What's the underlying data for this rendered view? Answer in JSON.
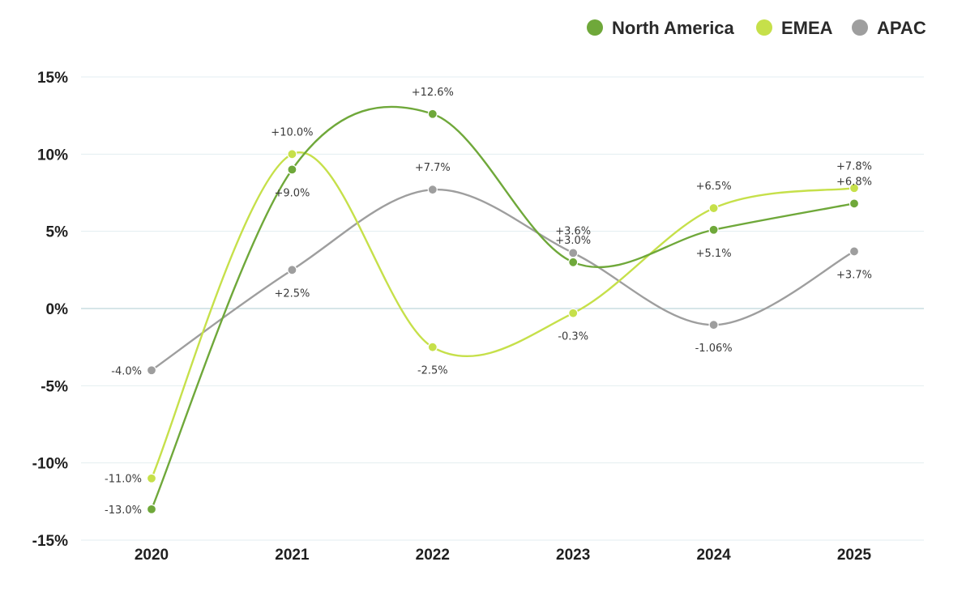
{
  "chart_data": {
    "type": "line",
    "title": "",
    "xlabel": "",
    "ylabel": "",
    "smooth": true,
    "x": [
      "2020",
      "2021",
      "2022",
      "2023",
      "2024",
      "2025"
    ],
    "ylim": [
      -15,
      15
    ],
    "yticks": [
      15,
      10,
      5,
      0,
      -5,
      -10,
      -15
    ],
    "ytick_labels": [
      "15%",
      "10%",
      "5%",
      "0%",
      "-5%",
      "-10%",
      "-15%"
    ],
    "grid": true,
    "legend_position": "top-right",
    "series": [
      {
        "name": "North America",
        "color": "#6fa83a",
        "values": [
          -13.0,
          9.0,
          12.6,
          3.0,
          5.1,
          6.8
        ],
        "labels": [
          "-13.0%",
          "+9.0%",
          "+12.6%",
          "+3.0%",
          "+5.1%",
          "+6.8%"
        ],
        "label_pos": [
          "left",
          "below",
          "above",
          "above",
          "below",
          "above"
        ]
      },
      {
        "name": "EMEA",
        "color": "#c6e04a",
        "values": [
          -11.0,
          10.0,
          -2.5,
          -0.3,
          6.5,
          7.8
        ],
        "labels": [
          "-11.0%",
          "+10.0%",
          "-2.5%",
          "-0.3%",
          "+6.5%",
          "+7.8%"
        ],
        "label_pos": [
          "left",
          "above",
          "below",
          "below",
          "above",
          "above"
        ]
      },
      {
        "name": "APAC",
        "color": "#9e9e9e",
        "values": [
          -4.0,
          2.5,
          7.7,
          3.6,
          -1.06,
          3.7
        ],
        "labels": [
          "-4.0%",
          "+2.5%",
          "+7.7%",
          "+3.6%",
          "-1.06%",
          "+3.7%"
        ],
        "label_pos": [
          "left",
          "below",
          "above",
          "above",
          "below",
          "below"
        ]
      }
    ]
  }
}
